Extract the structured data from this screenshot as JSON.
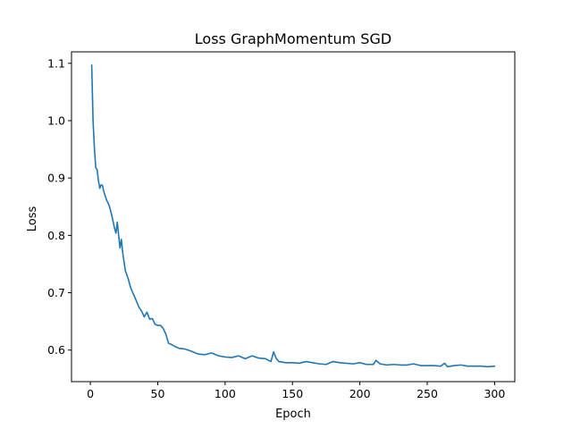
{
  "chart_data": {
    "type": "line",
    "title": "Loss GraphMomentum SGD",
    "xlabel": "Epoch",
    "ylabel": "Loss",
    "xlim": [
      -14,
      315
    ],
    "ylim": [
      0.545,
      1.12
    ],
    "xticks": [
      0,
      50,
      100,
      150,
      200,
      250,
      300
    ],
    "yticks": [
      0.6,
      0.7,
      0.8,
      0.9,
      1.0,
      1.1
    ],
    "ytick_labels": [
      "0.6",
      "0.7",
      "0.8",
      "0.9",
      "1.0",
      "1.1"
    ],
    "grid": false,
    "color": "#1f77b4",
    "series": [
      {
        "x": [
          1,
          2,
          3,
          4,
          5,
          6,
          7,
          8,
          9,
          10,
          12,
          14,
          16,
          18,
          19,
          20,
          21,
          22,
          23,
          24,
          26,
          28,
          30,
          33,
          36,
          38,
          40,
          42,
          44,
          46,
          48,
          50,
          52,
          54,
          56,
          58,
          60,
          63,
          66,
          70,
          75,
          80,
          85,
          90,
          95,
          100,
          105,
          110,
          115,
          120,
          125,
          130,
          134,
          136,
          138,
          140,
          145,
          150,
          155,
          160,
          165,
          170,
          175,
          180,
          185,
          190,
          195,
          200,
          205,
          210,
          212,
          215,
          220,
          225,
          230,
          235,
          240,
          245,
          250,
          255,
          260,
          263,
          265,
          270,
          275,
          280,
          285,
          290,
          295,
          300
        ],
        "y": [
          1.097,
          1.0,
          0.952,
          0.918,
          0.915,
          0.895,
          0.882,
          0.888,
          0.887,
          0.876,
          0.862,
          0.852,
          0.834,
          0.812,
          0.804,
          0.823,
          0.8,
          0.778,
          0.793,
          0.77,
          0.738,
          0.725,
          0.708,
          0.692,
          0.675,
          0.668,
          0.658,
          0.666,
          0.654,
          0.655,
          0.645,
          0.643,
          0.643,
          0.638,
          0.628,
          0.612,
          0.61,
          0.606,
          0.603,
          0.602,
          0.598,
          0.593,
          0.592,
          0.595,
          0.59,
          0.588,
          0.587,
          0.59,
          0.585,
          0.59,
          0.586,
          0.585,
          0.58,
          0.597,
          0.585,
          0.58,
          0.578,
          0.578,
          0.577,
          0.58,
          0.578,
          0.576,
          0.575,
          0.58,
          0.578,
          0.577,
          0.576,
          0.578,
          0.575,
          0.575,
          0.582,
          0.576,
          0.574,
          0.575,
          0.574,
          0.574,
          0.576,
          0.573,
          0.573,
          0.573,
          0.572,
          0.577,
          0.571,
          0.573,
          0.574,
          0.572,
          0.572,
          0.572,
          0.571,
          0.572
        ]
      }
    ]
  }
}
